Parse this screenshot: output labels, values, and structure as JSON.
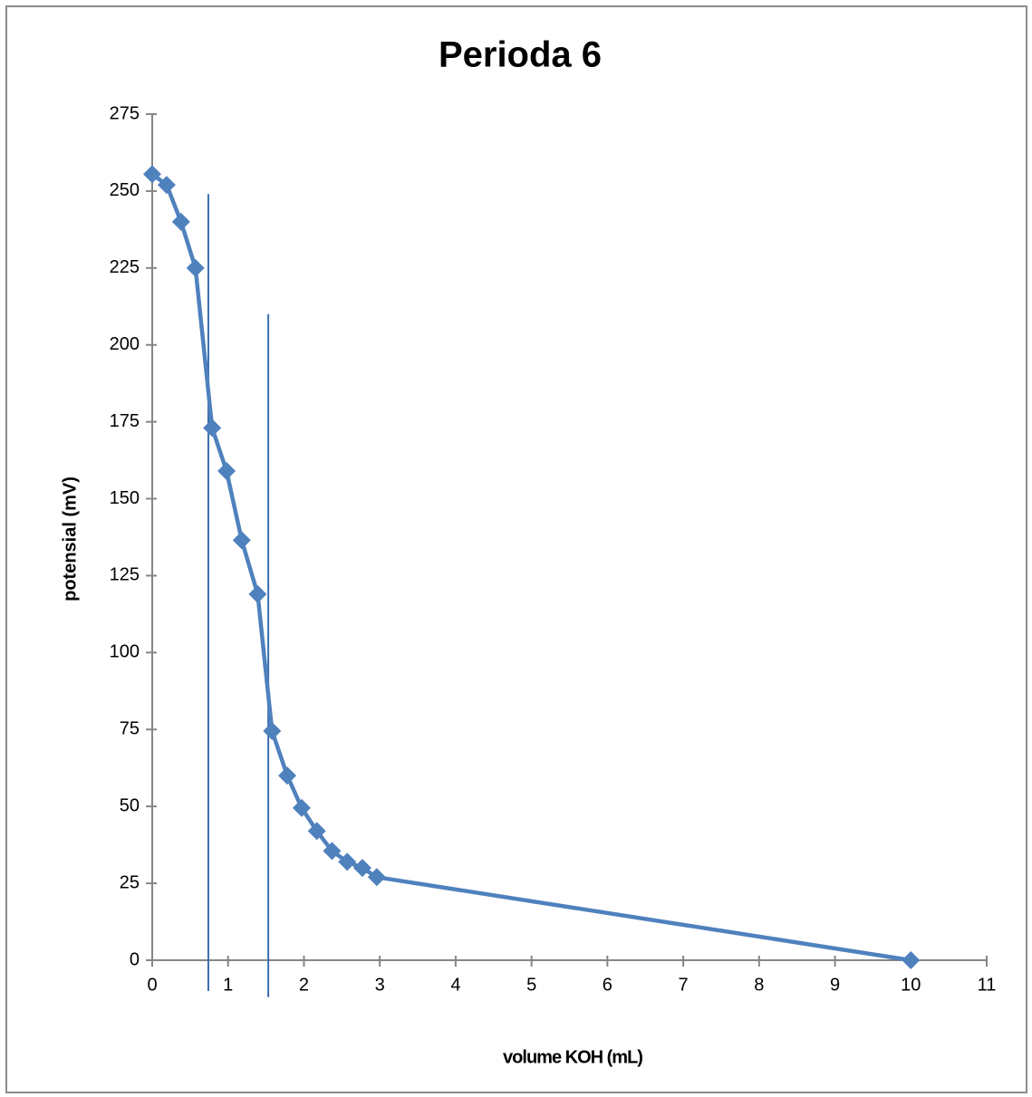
{
  "chart_data": {
    "type": "line",
    "title": "Perioda 6",
    "x_label": "volume KOH (mL)",
    "y_label": "potensial (mV)",
    "x": [
      0,
      0.19,
      0.38,
      0.57,
      0.79,
      0.98,
      1.18,
      1.39,
      1.58,
      1.78,
      1.97,
      2.17,
      2.37,
      2.57,
      2.77,
      2.96,
      10
    ],
    "series": [
      {
        "color": "#4f81bd",
        "values": [
          255.5,
          252,
          240,
          225,
          173,
          159,
          136.5,
          119,
          74.5,
          60,
          49.5,
          42,
          35.5,
          32,
          30,
          27,
          0
        ]
      }
    ],
    "reference_lines": [
      {
        "x": 0.74,
        "y_from": -10,
        "y_to": 249,
        "color": "#3a6fb0"
      },
      {
        "x": 1.53,
        "y_from": -12,
        "y_to": 210,
        "color": "#3a6fb0"
      }
    ],
    "xlim": [
      0,
      11
    ],
    "xticks": [
      0,
      1,
      2,
      3,
      4,
      5,
      6,
      7,
      8,
      9,
      10,
      11
    ],
    "ylim": [
      0,
      275
    ],
    "yticks": [
      0,
      25,
      50,
      75,
      100,
      125,
      150,
      175,
      200,
      225,
      250,
      275
    ],
    "grid": false
  }
}
